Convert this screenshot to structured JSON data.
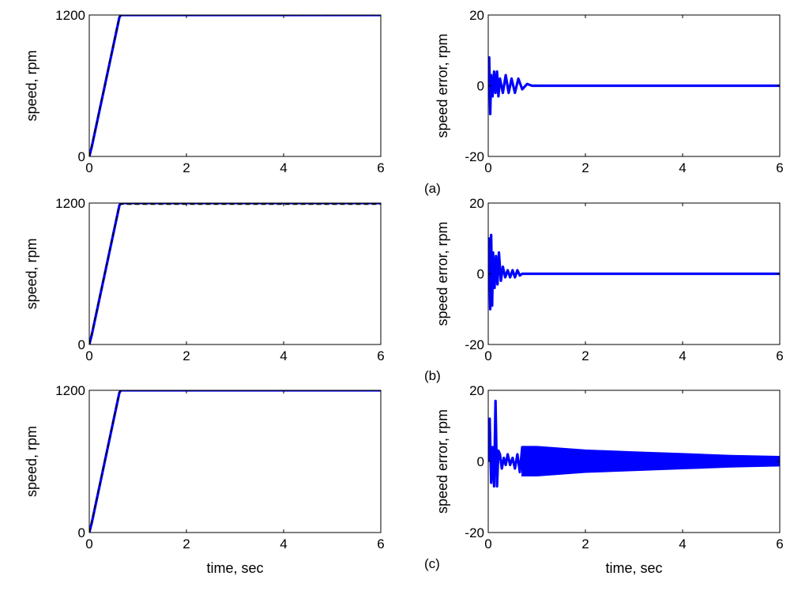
{
  "chart_data": [
    {
      "type": "line",
      "row": 1,
      "column": "left",
      "ylabel": "speed, rpm",
      "xlabel": "",
      "xlim": [
        0,
        6
      ],
      "ylim": [
        0,
        1200
      ],
      "xticks": [
        "0",
        "2",
        "4",
        "6"
      ],
      "yticks": [
        "0",
        "1200"
      ],
      "series": [
        {
          "style": "solid",
          "color": "#0000ff",
          "x": [
            0,
            0.05,
            0.62,
            0.65,
            6
          ],
          "y": [
            0,
            80,
            1180,
            1200,
            1200
          ]
        },
        {
          "style": "dashed",
          "color": "#000000",
          "x": [
            0,
            0.62,
            0.65,
            6
          ],
          "y": [
            0,
            1180,
            1200,
            1200
          ]
        }
      ]
    },
    {
      "type": "line",
      "row": 1,
      "column": "right",
      "ylabel": "speed error, rpm",
      "xlabel": "",
      "xlim": [
        0,
        6
      ],
      "ylim": [
        -20,
        20
      ],
      "xticks": [
        "0",
        "2",
        "4",
        "6"
      ],
      "yticks": [
        "-20",
        "0",
        "20"
      ],
      "series": [
        {
          "style": "solid",
          "color": "#0000ff",
          "x": [
            0,
            0.02,
            0.04,
            0.06,
            0.09,
            0.12,
            0.15,
            0.18,
            0.21,
            0.24,
            0.3,
            0.36,
            0.42,
            0.48,
            0.55,
            0.62,
            0.7,
            0.8,
            0.9,
            6
          ],
          "y": [
            0,
            8,
            -8,
            3,
            -3,
            4,
            -2,
            4,
            -3,
            2,
            -2,
            3,
            -2,
            2,
            -2,
            2,
            -1,
            0.5,
            0,
            0
          ]
        }
      ]
    },
    {
      "type": "line",
      "row": 2,
      "column": "left",
      "ylabel": "speed, rpm",
      "xlabel": "",
      "xlim": [
        0,
        6
      ],
      "ylim": [
        0,
        1200
      ],
      "xticks": [
        "0",
        "2",
        "4",
        "6"
      ],
      "yticks": [
        "0",
        "1200"
      ],
      "series": [
        {
          "style": "solid",
          "color": "#0000ff",
          "x": [
            0,
            0.05,
            0.62,
            0.65,
            6
          ],
          "y": [
            0,
            80,
            1180,
            1200,
            1200
          ]
        },
        {
          "style": "dashed",
          "color": "#000000",
          "x": [
            0,
            0.62,
            0.65,
            6
          ],
          "y": [
            0,
            1180,
            1190,
            1190
          ]
        }
      ]
    },
    {
      "type": "line",
      "row": 2,
      "column": "right",
      "ylabel": "speed error, rpm",
      "xlabel": "",
      "xlim": [
        0,
        6
      ],
      "ylim": [
        -20,
        20
      ],
      "xticks": [
        "0",
        "2",
        "4",
        "6"
      ],
      "yticks": [
        "-20",
        "0",
        "20"
      ],
      "series": [
        {
          "style": "solid",
          "color": "#0000ff",
          "x": [
            0,
            0.02,
            0.04,
            0.06,
            0.08,
            0.1,
            0.13,
            0.16,
            0.19,
            0.22,
            0.26,
            0.3,
            0.35,
            0.4,
            0.45,
            0.5,
            0.55,
            0.6,
            0.65,
            0.7,
            1.5,
            2.5,
            3.5,
            4.5,
            5.5,
            6
          ],
          "y": [
            0,
            10,
            -10,
            11,
            -9,
            6,
            -4,
            5,
            -3,
            6,
            -2,
            2,
            -1,
            1,
            -1,
            1,
            -1,
            1,
            -0.5,
            0,
            0,
            0,
            0,
            0,
            0,
            0
          ]
        }
      ]
    },
    {
      "type": "line",
      "row": 3,
      "column": "left",
      "ylabel": "speed, rpm",
      "xlabel": "time, sec",
      "xlim": [
        0,
        6
      ],
      "ylim": [
        0,
        1200
      ],
      "xticks": [
        "0",
        "2",
        "4",
        "6"
      ],
      "yticks": [
        "0",
        "1200"
      ],
      "series": [
        {
          "style": "solid",
          "color": "#0000ff",
          "x": [
            0,
            0.05,
            0.62,
            0.65,
            6
          ],
          "y": [
            0,
            80,
            1180,
            1200,
            1200
          ]
        },
        {
          "style": "dashed",
          "color": "#000000",
          "x": [
            0,
            0.62,
            0.65,
            6
          ],
          "y": [
            0,
            1180,
            1200,
            1200
          ]
        }
      ]
    },
    {
      "type": "line",
      "row": 3,
      "column": "right",
      "ylabel": "speed error, rpm",
      "xlabel": "time, sec",
      "xlim": [
        0,
        6
      ],
      "ylim": [
        -20,
        20
      ],
      "xticks": [
        "0",
        "2",
        "4",
        "6"
      ],
      "yticks": [
        "-20",
        "0",
        "20"
      ],
      "series": [
        {
          "style": "solid",
          "color": "#0000ff",
          "x": [
            0,
            0.03,
            0.06,
            0.09,
            0.12,
            0.15,
            0.18,
            0.21,
            0.24,
            0.28,
            0.32,
            0.36,
            0.4,
            0.45,
            0.5,
            0.55,
            0.6,
            0.65,
            0.7,
            1,
            2,
            3,
            4,
            5,
            6
          ],
          "y": [
            0,
            12,
            -6,
            4,
            -7,
            17,
            -7,
            3,
            2,
            -2,
            1,
            -1,
            2,
            -1,
            1,
            -2,
            2,
            -3,
            4,
            4,
            3,
            2.5,
            2,
            1.5,
            1.2
          ],
          "band_x": [
            0.7,
            1,
            2,
            3,
            4,
            5,
            6
          ],
          "band_upper": [
            4,
            4,
            3,
            2.5,
            2,
            1.5,
            1.2
          ],
          "band_lower": [
            -4,
            -4,
            -3,
            -2.5,
            -2,
            -1.5,
            -1.2
          ]
        }
      ]
    }
  ],
  "panel_labels": [
    "(a)",
    "(b)",
    "(c)"
  ]
}
